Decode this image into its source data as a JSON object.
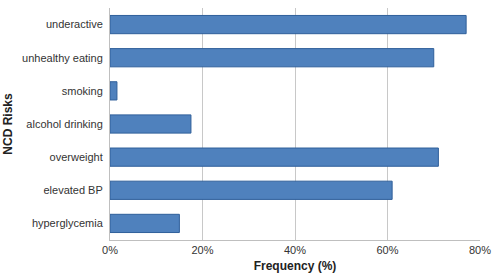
{
  "chart_data": {
    "type": "bar",
    "orientation": "horizontal",
    "categories": [
      "underactive",
      "unhealthy eating",
      "smoking",
      "alcohol drinking",
      "overweight",
      "elevated BP",
      "hyperglycemia"
    ],
    "values": [
      77,
      70,
      1.5,
      17.5,
      71,
      61,
      15
    ],
    "color": "#4f81bd",
    "x_label": "Frequency (%)",
    "y_label": "NCD Risks",
    "xlim": [
      0,
      80
    ],
    "xticks": [
      {
        "value": 0,
        "label": "0%"
      },
      {
        "value": 20,
        "label": "20%"
      },
      {
        "value": 40,
        "label": "40%"
      },
      {
        "value": 60,
        "label": "60%"
      },
      {
        "value": 80,
        "label": "80%"
      }
    ],
    "grid": true
  }
}
